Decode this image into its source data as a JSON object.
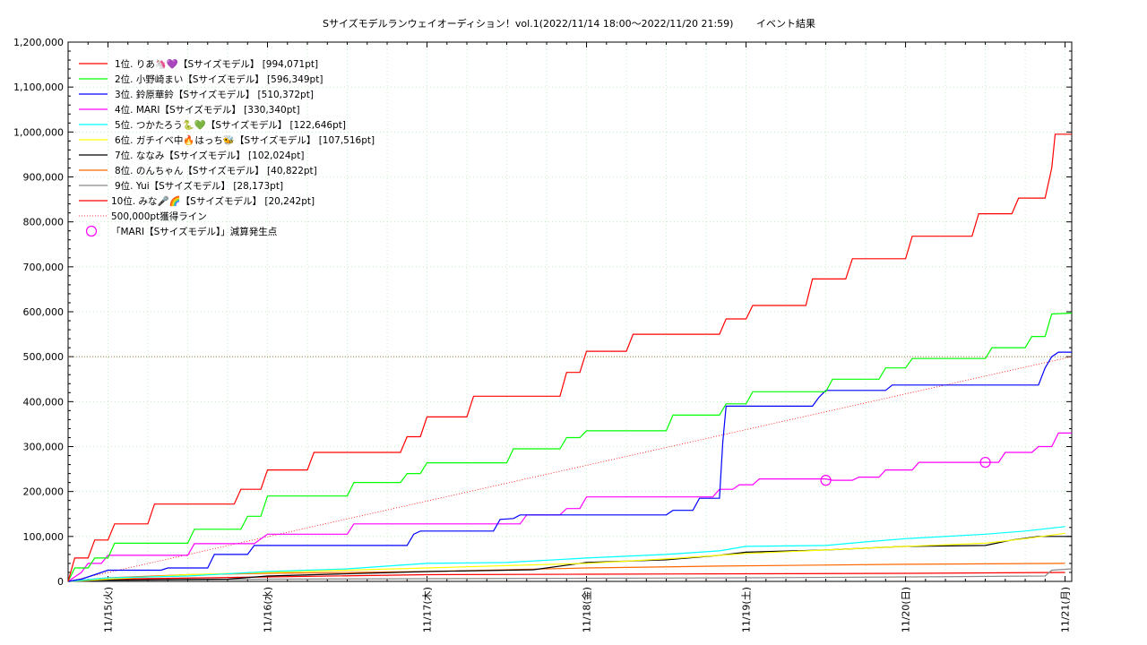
{
  "chart_data": {
    "type": "line",
    "title": "Sサイズモデルランウェイオーディション！vol.1(2022/11/14 18:00～2022/11/20 21:59)　　 イベント結果",
    "xlabel": "",
    "ylabel": "",
    "x_ticks": [
      "11/15(火)",
      "11/16(水)",
      "11/17(木)",
      "11/18(金)",
      "11/19(土)",
      "11/20(日)",
      "11/21(月)"
    ],
    "x_tick_hours": [
      6,
      30,
      54,
      78,
      102,
      126,
      150
    ],
    "xlim_hours": [
      0,
      151
    ],
    "ylim": [
      0,
      1200000
    ],
    "y_ticks": [
      0,
      100000,
      200000,
      300000,
      400000,
      500000,
      600000,
      700000,
      800000,
      900000,
      1000000,
      1100000,
      1200000
    ],
    "y_tick_labels": [
      "0",
      "100,000",
      "200,000",
      "300,000",
      "400,000",
      "500,000",
      "600,000",
      "700,000",
      "800,000",
      "900,000",
      "1,000,000",
      "1,100,000",
      "1,200,000"
    ],
    "grid": true,
    "legend_position": "top-left",
    "series": [
      {
        "name": "1位. りあ🦄💜【Sサイズモデル】 [994,071pt]",
        "color": "#ff0000",
        "points": [
          [
            0,
            0
          ],
          [
            1,
            52000
          ],
          [
            3,
            52000
          ],
          [
            4,
            92000
          ],
          [
            6,
            92000
          ],
          [
            7,
            128000
          ],
          [
            12,
            128000
          ],
          [
            13,
            172000
          ],
          [
            25,
            172000
          ],
          [
            26,
            205000
          ],
          [
            29,
            205000
          ],
          [
            30,
            248000
          ],
          [
            36,
            248000
          ],
          [
            37,
            287000
          ],
          [
            50,
            287000
          ],
          [
            51,
            322000
          ],
          [
            53,
            322000
          ],
          [
            54,
            366000
          ],
          [
            60,
            366000
          ],
          [
            61,
            412000
          ],
          [
            74,
            412000
          ],
          [
            75,
            465000
          ],
          [
            77,
            465000
          ],
          [
            78,
            512000
          ],
          [
            84,
            512000
          ],
          [
            85,
            550000
          ],
          [
            98,
            550000
          ],
          [
            99,
            584000
          ],
          [
            102,
            584000
          ],
          [
            103,
            614000
          ],
          [
            111,
            614000
          ],
          [
            112,
            673000
          ],
          [
            117,
            673000
          ],
          [
            118,
            718000
          ],
          [
            126,
            718000
          ],
          [
            127,
            768000
          ],
          [
            136,
            768000
          ],
          [
            137,
            818000
          ],
          [
            142,
            818000
          ],
          [
            143,
            853000
          ],
          [
            147,
            853000
          ],
          [
            148,
            920000
          ],
          [
            148.5,
            995000
          ],
          [
            151,
            995000
          ]
        ]
      },
      {
        "name": "2位. 小野崎まい【Sサイズモデル】 [596,349pt]",
        "color": "#00ff00",
        "points": [
          [
            0,
            0
          ],
          [
            1,
            30000
          ],
          [
            3,
            30000
          ],
          [
            4,
            52000
          ],
          [
            6,
            52000
          ],
          [
            7,
            85000
          ],
          [
            18,
            85000
          ],
          [
            19,
            116000
          ],
          [
            26,
            116000
          ],
          [
            27,
            145000
          ],
          [
            29,
            145000
          ],
          [
            30,
            190000
          ],
          [
            42,
            190000
          ],
          [
            43,
            220000
          ],
          [
            50,
            220000
          ],
          [
            51,
            240000
          ],
          [
            53,
            240000
          ],
          [
            54,
            264000
          ],
          [
            66,
            264000
          ],
          [
            67,
            295000
          ],
          [
            74,
            295000
          ],
          [
            75,
            320000
          ],
          [
            77,
            320000
          ],
          [
            78,
            335000
          ],
          [
            90,
            335000
          ],
          [
            91,
            370000
          ],
          [
            98,
            370000
          ],
          [
            99,
            395000
          ],
          [
            102,
            395000
          ],
          [
            103,
            422000
          ],
          [
            114,
            422000
          ],
          [
            115,
            450000
          ],
          [
            122,
            450000
          ],
          [
            123,
            475000
          ],
          [
            126,
            475000
          ],
          [
            127,
            496000
          ],
          [
            138,
            496000
          ],
          [
            139,
            520000
          ],
          [
            144,
            520000
          ],
          [
            145,
            545000
          ],
          [
            147,
            545000
          ],
          [
            148,
            595000
          ],
          [
            151,
            597000
          ]
        ]
      },
      {
        "name": "3位. 鈴原華鈴【Sサイズモデル】 [510,372pt]",
        "color": "#0000ff",
        "points": [
          [
            0,
            0
          ],
          [
            2,
            5000
          ],
          [
            4,
            15000
          ],
          [
            6,
            25000
          ],
          [
            14,
            25000
          ],
          [
            15,
            30000
          ],
          [
            21,
            30000
          ],
          [
            22,
            60000
          ],
          [
            27,
            60000
          ],
          [
            28,
            80000
          ],
          [
            51,
            80000
          ],
          [
            52,
            105000
          ],
          [
            53,
            112000
          ],
          [
            64,
            112000
          ],
          [
            65,
            138000
          ],
          [
            67,
            140000
          ],
          [
            68,
            148000
          ],
          [
            90,
            148000
          ],
          [
            91,
            158000
          ],
          [
            94,
            158000
          ],
          [
            95,
            185000
          ],
          [
            98,
            185000
          ],
          [
            98.5,
            310000
          ],
          [
            99,
            390000
          ],
          [
            112,
            390000
          ],
          [
            113,
            410000
          ],
          [
            114,
            425000
          ],
          [
            123,
            425000
          ],
          [
            124,
            437000
          ],
          [
            146,
            437000
          ],
          [
            147,
            475000
          ],
          [
            148,
            500000
          ],
          [
            149,
            510000
          ],
          [
            151,
            510000
          ]
        ]
      },
      {
        "name": "4位. MARI【Sサイズモデル】 [330,340pt]",
        "color": "#ff00ff",
        "points": [
          [
            0,
            0
          ],
          [
            2,
            20000
          ],
          [
            3,
            40000
          ],
          [
            5,
            40000
          ],
          [
            6,
            58000
          ],
          [
            18,
            58000
          ],
          [
            19,
            84000
          ],
          [
            28,
            84000
          ],
          [
            30,
            105000
          ],
          [
            42,
            105000
          ],
          [
            43,
            128000
          ],
          [
            68,
            128000
          ],
          [
            69,
            148000
          ],
          [
            74,
            148000
          ],
          [
            75,
            162000
          ],
          [
            77,
            162000
          ],
          [
            78,
            188000
          ],
          [
            97,
            188000
          ],
          [
            98,
            205000
          ],
          [
            100,
            205000
          ],
          [
            101,
            215000
          ],
          [
            103,
            215000
          ],
          [
            104,
            228000
          ],
          [
            114,
            228000
          ],
          [
            115,
            225000
          ],
          [
            118,
            225000
          ],
          [
            119,
            232000
          ],
          [
            122,
            232000
          ],
          [
            123,
            248000
          ],
          [
            127,
            248000
          ],
          [
            128,
            265000
          ],
          [
            140,
            265000
          ],
          [
            141,
            287000
          ],
          [
            145,
            287000
          ],
          [
            146,
            300000
          ],
          [
            148,
            300000
          ],
          [
            149,
            330000
          ],
          [
            151,
            330000
          ]
        ]
      },
      {
        "name": "5位. つかたろう🐍💚【Sサイズモデル】 [122,646pt]",
        "color": "#00ffff",
        "points": [
          [
            0,
            0
          ],
          [
            6,
            8000
          ],
          [
            18,
            12000
          ],
          [
            30,
            22000
          ],
          [
            42,
            28000
          ],
          [
            50,
            36000
          ],
          [
            54,
            40000
          ],
          [
            66,
            42000
          ],
          [
            78,
            52000
          ],
          [
            90,
            60000
          ],
          [
            98,
            68000
          ],
          [
            102,
            78000
          ],
          [
            114,
            80000
          ],
          [
            120,
            88000
          ],
          [
            126,
            95000
          ],
          [
            138,
            105000
          ],
          [
            144,
            112000
          ],
          [
            150,
            122000
          ]
        ]
      },
      {
        "name": "6位. ガチイベ中🔥はっち🐝【Sサイズモデル】 [107,516pt]",
        "color": "#ffff00",
        "points": [
          [
            0,
            0
          ],
          [
            6,
            5000
          ],
          [
            18,
            15000
          ],
          [
            30,
            20000
          ],
          [
            42,
            25000
          ],
          [
            54,
            30000
          ],
          [
            66,
            35000
          ],
          [
            78,
            40000
          ],
          [
            90,
            50000
          ],
          [
            102,
            62000
          ],
          [
            114,
            70000
          ],
          [
            126,
            78000
          ],
          [
            138,
            85000
          ],
          [
            144,
            95000
          ],
          [
            150,
            107000
          ]
        ]
      },
      {
        "name": "7位. ななみ【Sサイズモデル】 [102,024pt]",
        "color": "#000000",
        "points": [
          [
            0,
            0
          ],
          [
            6,
            3000
          ],
          [
            24,
            5000
          ],
          [
            30,
            12000
          ],
          [
            54,
            22000
          ],
          [
            70,
            26000
          ],
          [
            78,
            42000
          ],
          [
            90,
            48000
          ],
          [
            98,
            58000
          ],
          [
            102,
            65000
          ],
          [
            114,
            70000
          ],
          [
            126,
            78000
          ],
          [
            138,
            80000
          ],
          [
            142,
            92000
          ],
          [
            146,
            100000
          ],
          [
            151,
            100000
          ]
        ]
      },
      {
        "name": "8位. のんちゃん【Sサイズモデル】 [40,822pt]",
        "color": "#ff6600",
        "points": [
          [
            0,
            0
          ],
          [
            6,
            8000
          ],
          [
            18,
            15000
          ],
          [
            30,
            18000
          ],
          [
            54,
            22000
          ],
          [
            78,
            30000
          ],
          [
            98,
            34000
          ],
          [
            126,
            38000
          ],
          [
            150,
            40000
          ]
        ]
      },
      {
        "name": "9位. Yui【Sサイズモデル】 [28,173pt]",
        "color": "#888888",
        "points": [
          [
            0,
            0
          ],
          [
            6,
            2000
          ],
          [
            30,
            5000
          ],
          [
            54,
            6000
          ],
          [
            78,
            7000
          ],
          [
            102,
            8000
          ],
          [
            126,
            10000
          ],
          [
            147,
            12000
          ],
          [
            148,
            25000
          ],
          [
            151,
            28000
          ]
        ]
      },
      {
        "name": "10位. みな🎤🌈【Sサイズモデル】 [20,242pt]",
        "color": "#ff0000",
        "points": [
          [
            0,
            0
          ],
          [
            6,
            5000
          ],
          [
            30,
            10000
          ],
          [
            54,
            15000
          ],
          [
            78,
            16000
          ],
          [
            102,
            17000
          ],
          [
            126,
            18000
          ],
          [
            150,
            20000
          ]
        ]
      }
    ],
    "reference_line": {
      "name": "500,000pt獲得ライン",
      "color": "#ff0000",
      "points": [
        [
          0,
          0
        ],
        [
          151,
          500000
        ]
      ]
    },
    "markers": {
      "name": "「MARI【Sサイズモデル】」減算発生点",
      "color": "#ff00ff",
      "points": [
        [
          114,
          225000
        ],
        [
          138,
          265000
        ]
      ]
    }
  }
}
